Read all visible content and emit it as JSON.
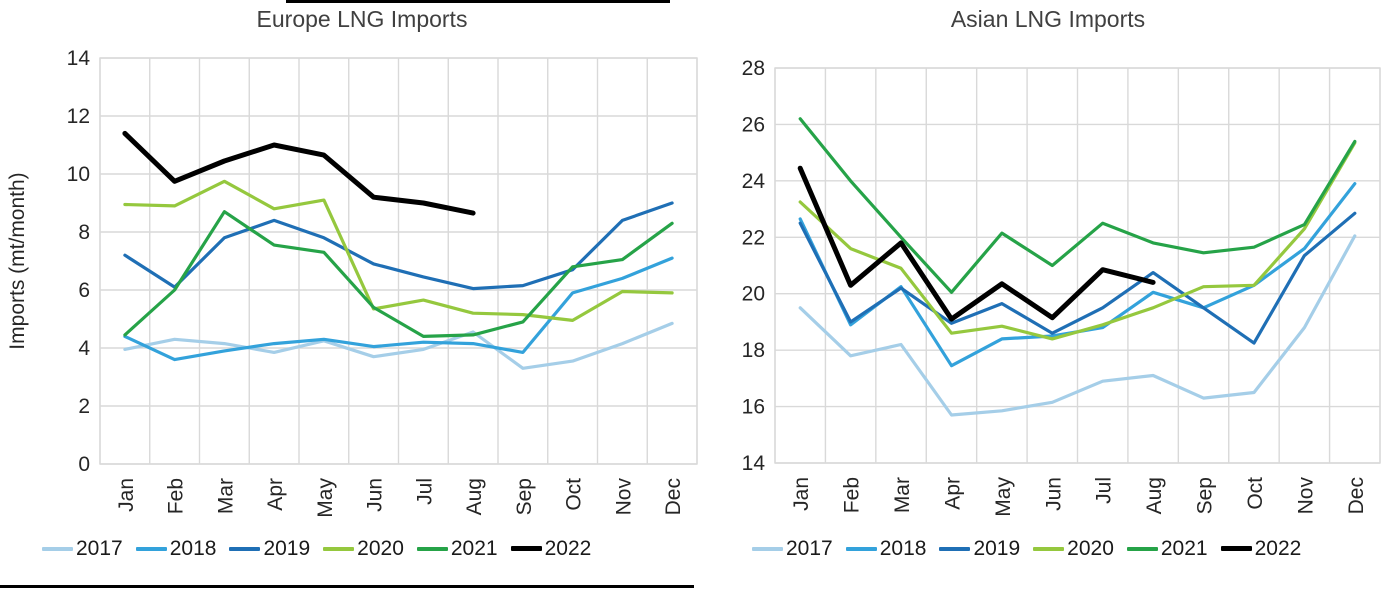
{
  "chart_data": [
    {
      "id": "europe",
      "type": "line",
      "title": "Europe LNG Imports",
      "ylabel": "Imports (mt/month)",
      "xlabel": "",
      "ylim": [
        0,
        14
      ],
      "y_ticks": [
        0,
        2,
        4,
        6,
        8,
        10,
        12,
        14
      ],
      "grid": true,
      "legend_position": "bottom",
      "categories": [
        "Jan",
        "Feb",
        "Mar",
        "Apr",
        "May",
        "Jun",
        "Jul",
        "Aug",
        "Sep",
        "Oct",
        "Nov",
        "Dec"
      ],
      "series": [
        {
          "name": "2017",
          "color": "#A5CEE8",
          "thick": false,
          "values": [
            3.95,
            4.3,
            4.15,
            3.85,
            4.25,
            3.7,
            3.95,
            4.55,
            3.3,
            3.55,
            4.15,
            4.85
          ]
        },
        {
          "name": "2018",
          "color": "#33A2DB",
          "thick": false,
          "values": [
            4.4,
            3.6,
            3.9,
            4.15,
            4.3,
            4.05,
            4.2,
            4.15,
            3.85,
            5.9,
            6.4,
            7.1
          ]
        },
        {
          "name": "2019",
          "color": "#1F6FB5",
          "thick": false,
          "values": [
            7.2,
            6.1,
            7.8,
            8.4,
            7.8,
            6.9,
            6.45,
            6.05,
            6.15,
            6.7,
            8.4,
            9.0
          ]
        },
        {
          "name": "2020",
          "color": "#95C83E",
          "thick": false,
          "values": [
            8.95,
            8.9,
            9.75,
            8.8,
            9.1,
            5.35,
            5.65,
            5.2,
            5.15,
            4.95,
            5.95,
            5.9
          ]
        },
        {
          "name": "2021",
          "color": "#26A348",
          "thick": false,
          "values": [
            4.45,
            6.0,
            8.7,
            7.55,
            7.3,
            5.4,
            4.4,
            4.45,
            4.9,
            6.8,
            7.05,
            8.3
          ]
        },
        {
          "name": "2022",
          "color": "#000000",
          "thick": true,
          "values": [
            11.4,
            9.75,
            10.45,
            11.0,
            10.65,
            9.2,
            9.0,
            8.65,
            null,
            null,
            null,
            null
          ]
        }
      ]
    },
    {
      "id": "asia",
      "type": "line",
      "title": "Asian LNG Imports",
      "ylabel": "",
      "xlabel": "",
      "ylim": [
        14,
        28
      ],
      "y_ticks": [
        14,
        16,
        18,
        20,
        22,
        24,
        26,
        28
      ],
      "grid": true,
      "legend_position": "bottom",
      "categories": [
        "Jan",
        "Feb",
        "Mar",
        "Apr",
        "May",
        "Jun",
        "Jul",
        "Aug",
        "Sep",
        "Oct",
        "Nov",
        "Dec"
      ],
      "series": [
        {
          "name": "2017",
          "color": "#A5CEE8",
          "thick": false,
          "values": [
            19.5,
            17.8,
            18.2,
            15.7,
            15.85,
            16.15,
            16.9,
            17.1,
            16.3,
            16.5,
            18.8,
            22.05
          ]
        },
        {
          "name": "2018",
          "color": "#33A2DB",
          "thick": false,
          "values": [
            22.65,
            18.9,
            20.25,
            17.45,
            18.4,
            18.5,
            18.8,
            20.05,
            19.5,
            20.3,
            21.6,
            23.9
          ]
        },
        {
          "name": "2019",
          "color": "#1F6FB5",
          "thick": false,
          "values": [
            22.5,
            19.0,
            20.2,
            18.95,
            19.65,
            18.6,
            19.5,
            20.75,
            19.5,
            18.25,
            21.35,
            22.85
          ]
        },
        {
          "name": "2020",
          "color": "#95C83E",
          "thick": false,
          "values": [
            23.25,
            21.6,
            20.9,
            18.6,
            18.85,
            18.4,
            18.9,
            19.5,
            20.25,
            20.3,
            22.3,
            25.35
          ]
        },
        {
          "name": "2021",
          "color": "#26A348",
          "thick": false,
          "values": [
            26.2,
            24.0,
            22.0,
            20.05,
            22.15,
            21.0,
            22.5,
            21.8,
            21.45,
            21.65,
            22.45,
            25.4
          ]
        },
        {
          "name": "2022",
          "color": "#000000",
          "thick": true,
          "values": [
            24.45,
            20.3,
            21.8,
            19.1,
            20.35,
            19.15,
            20.85,
            20.4,
            null,
            null,
            null,
            null
          ]
        }
      ]
    }
  ],
  "style": {
    "grid_color": "#D9D9D9",
    "tick_label_color": "#262626",
    "title_color": "#404040"
  }
}
